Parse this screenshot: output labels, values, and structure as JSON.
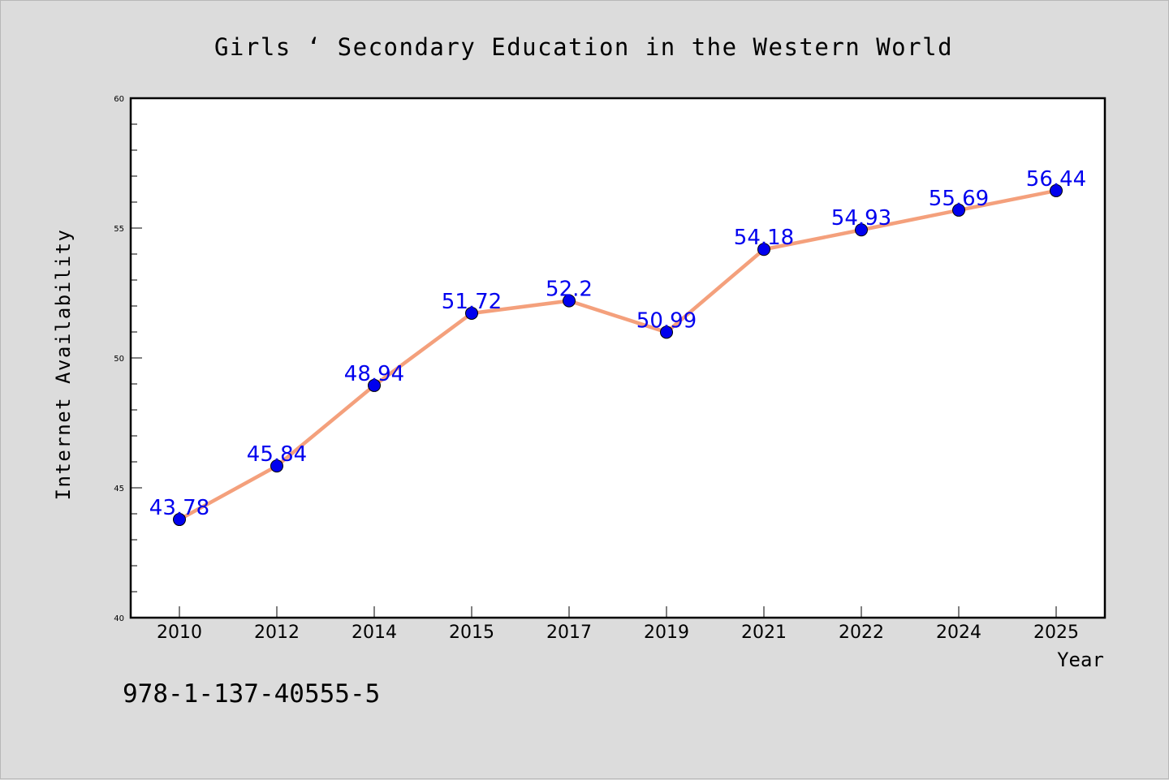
{
  "chart_data": {
    "type": "line",
    "title": "Girls ‘ Secondary Education in the Western World",
    "xlabel": "Year",
    "ylabel": "Internet Availability",
    "categories": [
      "2010",
      "2012",
      "2014",
      "2015",
      "2017",
      "2019",
      "2021",
      "2022",
      "2024",
      "2025"
    ],
    "series": [
      {
        "values": [
          43.78,
          45.84,
          48.94,
          51.72,
          52.2,
          50.99,
          54.18,
          54.93,
          55.69,
          56.44
        ],
        "data_labels": [
          "43.78",
          "45.84",
          "48.94",
          "51.72",
          "52.2",
          "50.99",
          "54.18",
          "54.93",
          "55.69",
          "56.44"
        ]
      }
    ],
    "ylim": [
      40,
      60
    ],
    "yticks": [
      "40",
      "45",
      "50",
      "55",
      "60"
    ],
    "grid": false,
    "line_color": "#f4a07c",
    "marker_color": "#0000ee",
    "label_color": "#0000ee"
  },
  "footer_text": "978-1-137-40555-5"
}
